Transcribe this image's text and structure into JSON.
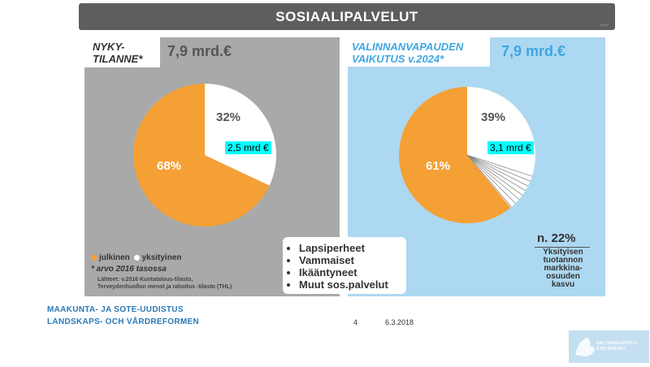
{
  "header": {
    "title": "SOSIAALIPALVELUT"
  },
  "left_panel": {
    "label_lines": [
      "NYKY-",
      "TILANNE*"
    ],
    "total": "7,9 mrd.€",
    "callout": "2,5 mrd €",
    "legend": {
      "public": "julkinen",
      "private": "yksityinen"
    },
    "note": "* arvo 2016 tasossa",
    "source_lines": [
      "Lähteet: v.2016 Kuntatalous-tilasto,",
      "Terveydenhuollon menot ja rahoitus -tilasto (THL)"
    ]
  },
  "right_panel": {
    "label_lines": [
      "VALINNANVAPAUDEN",
      "VAIKUTUS v.2024*"
    ],
    "total": "7,9 mrd.€",
    "callout": "3,1 mrd €",
    "growth_value": "n. 22%",
    "growth_lines": [
      "Yksityisen",
      "tuotannon",
      "markkina-",
      "osuuden",
      "kasvu"
    ]
  },
  "services_list": [
    "Lapsiperheet",
    "Vammaiset",
    "Ikääntyneet",
    "Muut sos.palvelut"
  ],
  "footer": {
    "line1": "MAAKUNTA- JA SOTE-UUDISTUS",
    "line2": "LANDSKAPS- OCH VÅRDREFORMEN",
    "page_number": "4",
    "date": "6.3.2018"
  },
  "logo": {
    "text_lines": [
      "VALTIONEUVOSTO",
      "STATSRÅDET"
    ]
  },
  "colors": {
    "public": "#f5a035",
    "private": "#ffffff",
    "left_bg": "#a9a9a9",
    "right_bg": "#add8f1",
    "right_accent": "#3fa6e0",
    "title_bg": "#5e5e5e"
  },
  "chart_data": [
    {
      "type": "pie",
      "categories": [
        "julkinen",
        "yksityinen"
      ],
      "values": [
        68,
        32
      ],
      "labels": [
        "68%",
        "32%"
      ],
      "title": "NYKY-TILANNE*"
    },
    {
      "type": "pie",
      "categories": [
        "julkinen",
        "yksityinen"
      ],
      "values": [
        61,
        39
      ],
      "labels": [
        "61%",
        "39%"
      ],
      "title": "VALINNANVAPAUDEN VAIKUTUS v.2024*"
    }
  ]
}
